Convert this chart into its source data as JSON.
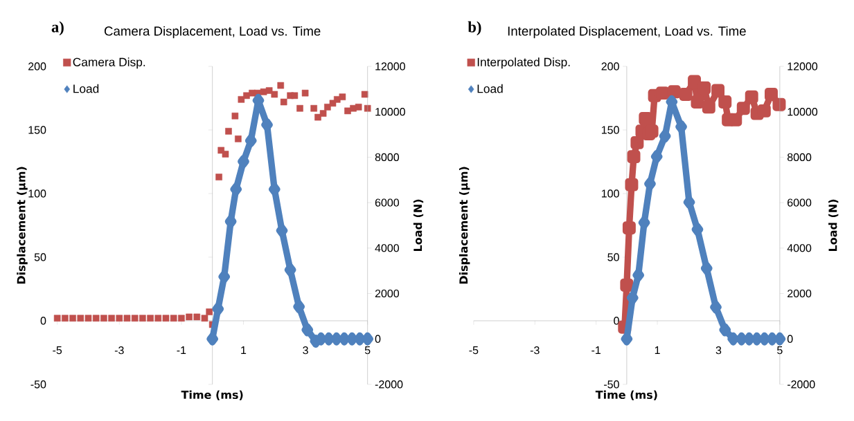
{
  "chart_data": [
    {
      "type": "scatter",
      "title": "Camera Displacement, Load vs. Time",
      "xlabel": "Time (ms)",
      "ylabel": "Displacement (µm)",
      "y2label": "Load (N)",
      "annotations": [
        "a)"
      ],
      "legend": "top left",
      "xlim": [
        -5,
        5
      ],
      "xticks": [
        -5,
        -3,
        -1,
        1,
        3,
        5
      ],
      "ylim": [
        -50,
        200
      ],
      "yticks": [
        -50,
        0,
        50,
        100,
        150,
        200
      ],
      "y2lim": [
        -2000,
        12000
      ],
      "y2ticks": [
        -2000,
        0,
        2000,
        4000,
        6000,
        8000,
        10000,
        12000
      ],
      "series": [
        {
          "name": "Camera Disp.",
          "marker": "square",
          "color": "#c0504d",
          "x": [
            -5,
            -4.75,
            -4.5,
            -4.25,
            -4,
            -3.75,
            -3.5,
            -3.25,
            -3,
            -2.75,
            -2.5,
            -2.25,
            -2,
            -1.75,
            -1.5,
            -1.25,
            -1,
            -0.75,
            -0.5,
            -0.25,
            -0.1,
            0,
            0.21,
            0.28,
            0.42,
            0.52,
            0.73,
            0.83,
            0.93,
            1.1,
            1.28,
            1.45,
            1.65,
            1.83,
            2.0,
            2.2,
            2.3,
            2.51,
            2.65,
            2.82,
            2.99,
            3.27,
            3.4,
            3.57,
            3.71,
            3.88,
            4.02,
            4.19,
            4.36,
            4.54,
            4.71,
            4.91,
            5.0
          ],
          "values": [
            2,
            2,
            2,
            2,
            2,
            2,
            2,
            2,
            2,
            2,
            2,
            2,
            2,
            2,
            2,
            2,
            2,
            3,
            3,
            2,
            7,
            -3,
            113,
            134,
            131,
            149,
            161,
            143,
            174,
            177,
            179,
            179,
            180,
            181,
            178,
            185,
            172,
            177,
            177,
            167,
            179,
            167,
            160,
            163,
            168,
            171,
            174,
            176,
            165,
            167,
            168,
            178,
            167
          ]
        },
        {
          "name": "Load",
          "type": "line",
          "marker": "diamond",
          "axis": "y2",
          "color": "#4f81bd",
          "x": [
            0,
            0.18,
            0.38,
            0.59,
            0.76,
            1.0,
            1.24,
            1.48,
            1.76,
            2.0,
            2.24,
            2.51,
            2.79,
            3.06,
            3.33,
            3.5,
            3.75,
            4.0,
            4.25,
            4.5,
            4.75,
            5.0
          ],
          "values": [
            0,
            1320,
            2740,
            5170,
            6590,
            7810,
            8730,
            10500,
            9430,
            6590,
            4770,
            3040,
            1420,
            400,
            -100,
            0,
            0,
            0,
            0,
            0,
            0,
            0
          ]
        }
      ]
    },
    {
      "type": "line",
      "title": "Interpolated Displacement, Load vs. Time",
      "xlabel": "Time (ms)",
      "ylabel": "Displacement (µm)",
      "y2label": "Load (N)",
      "annotations": [
        "b)"
      ],
      "legend": "top left",
      "xlim": [
        -5,
        5
      ],
      "xticks": [
        -5,
        -3,
        -1,
        1,
        3,
        5
      ],
      "ylim": [
        -50,
        200
      ],
      "yticks": [
        -50,
        0,
        50,
        100,
        150,
        200
      ],
      "y2lim": [
        -2000,
        12000
      ],
      "y2ticks": [
        -2000,
        0,
        2000,
        4000,
        6000,
        8000,
        10000,
        12000
      ],
      "series": [
        {
          "name": "Interpolated Disp.",
          "marker": "square",
          "color": "#c0504d",
          "x": [
            -0.07,
            0,
            0.08,
            0.16,
            0.23,
            0.34,
            0.5,
            0.61,
            0.72,
            0.82,
            0.91,
            1.17,
            1.55,
            1.93,
            2.21,
            2.31,
            2.53,
            2.68,
            2.98,
            3.21,
            3.32,
            3.55,
            3.81,
            4.08,
            4.26,
            4.49,
            4.72,
            4.98
          ],
          "values": [
            -5,
            28,
            73,
            107,
            129,
            140,
            149,
            159,
            147,
            149,
            177,
            179,
            180,
            178,
            188,
            172,
            183,
            168,
            181,
            172,
            158,
            158,
            167,
            176,
            163,
            165,
            178,
            170
          ]
        },
        {
          "name": "Load",
          "marker": "diamond",
          "axis": "y2",
          "color": "#4f81bd",
          "x": [
            0,
            0.19,
            0.38,
            0.57,
            0.76,
            0.98,
            1.25,
            1.47,
            1.78,
            2.04,
            2.31,
            2.61,
            2.91,
            3.21,
            3.48,
            3.75,
            4.0,
            4.25,
            4.5,
            4.75,
            5.0
          ],
          "values": [
            0,
            1810,
            2810,
            5120,
            6830,
            8030,
            8930,
            10440,
            9340,
            6020,
            4820,
            3110,
            1400,
            400,
            0,
            0,
            0,
            0,
            0,
            0,
            0
          ]
        }
      ]
    }
  ]
}
